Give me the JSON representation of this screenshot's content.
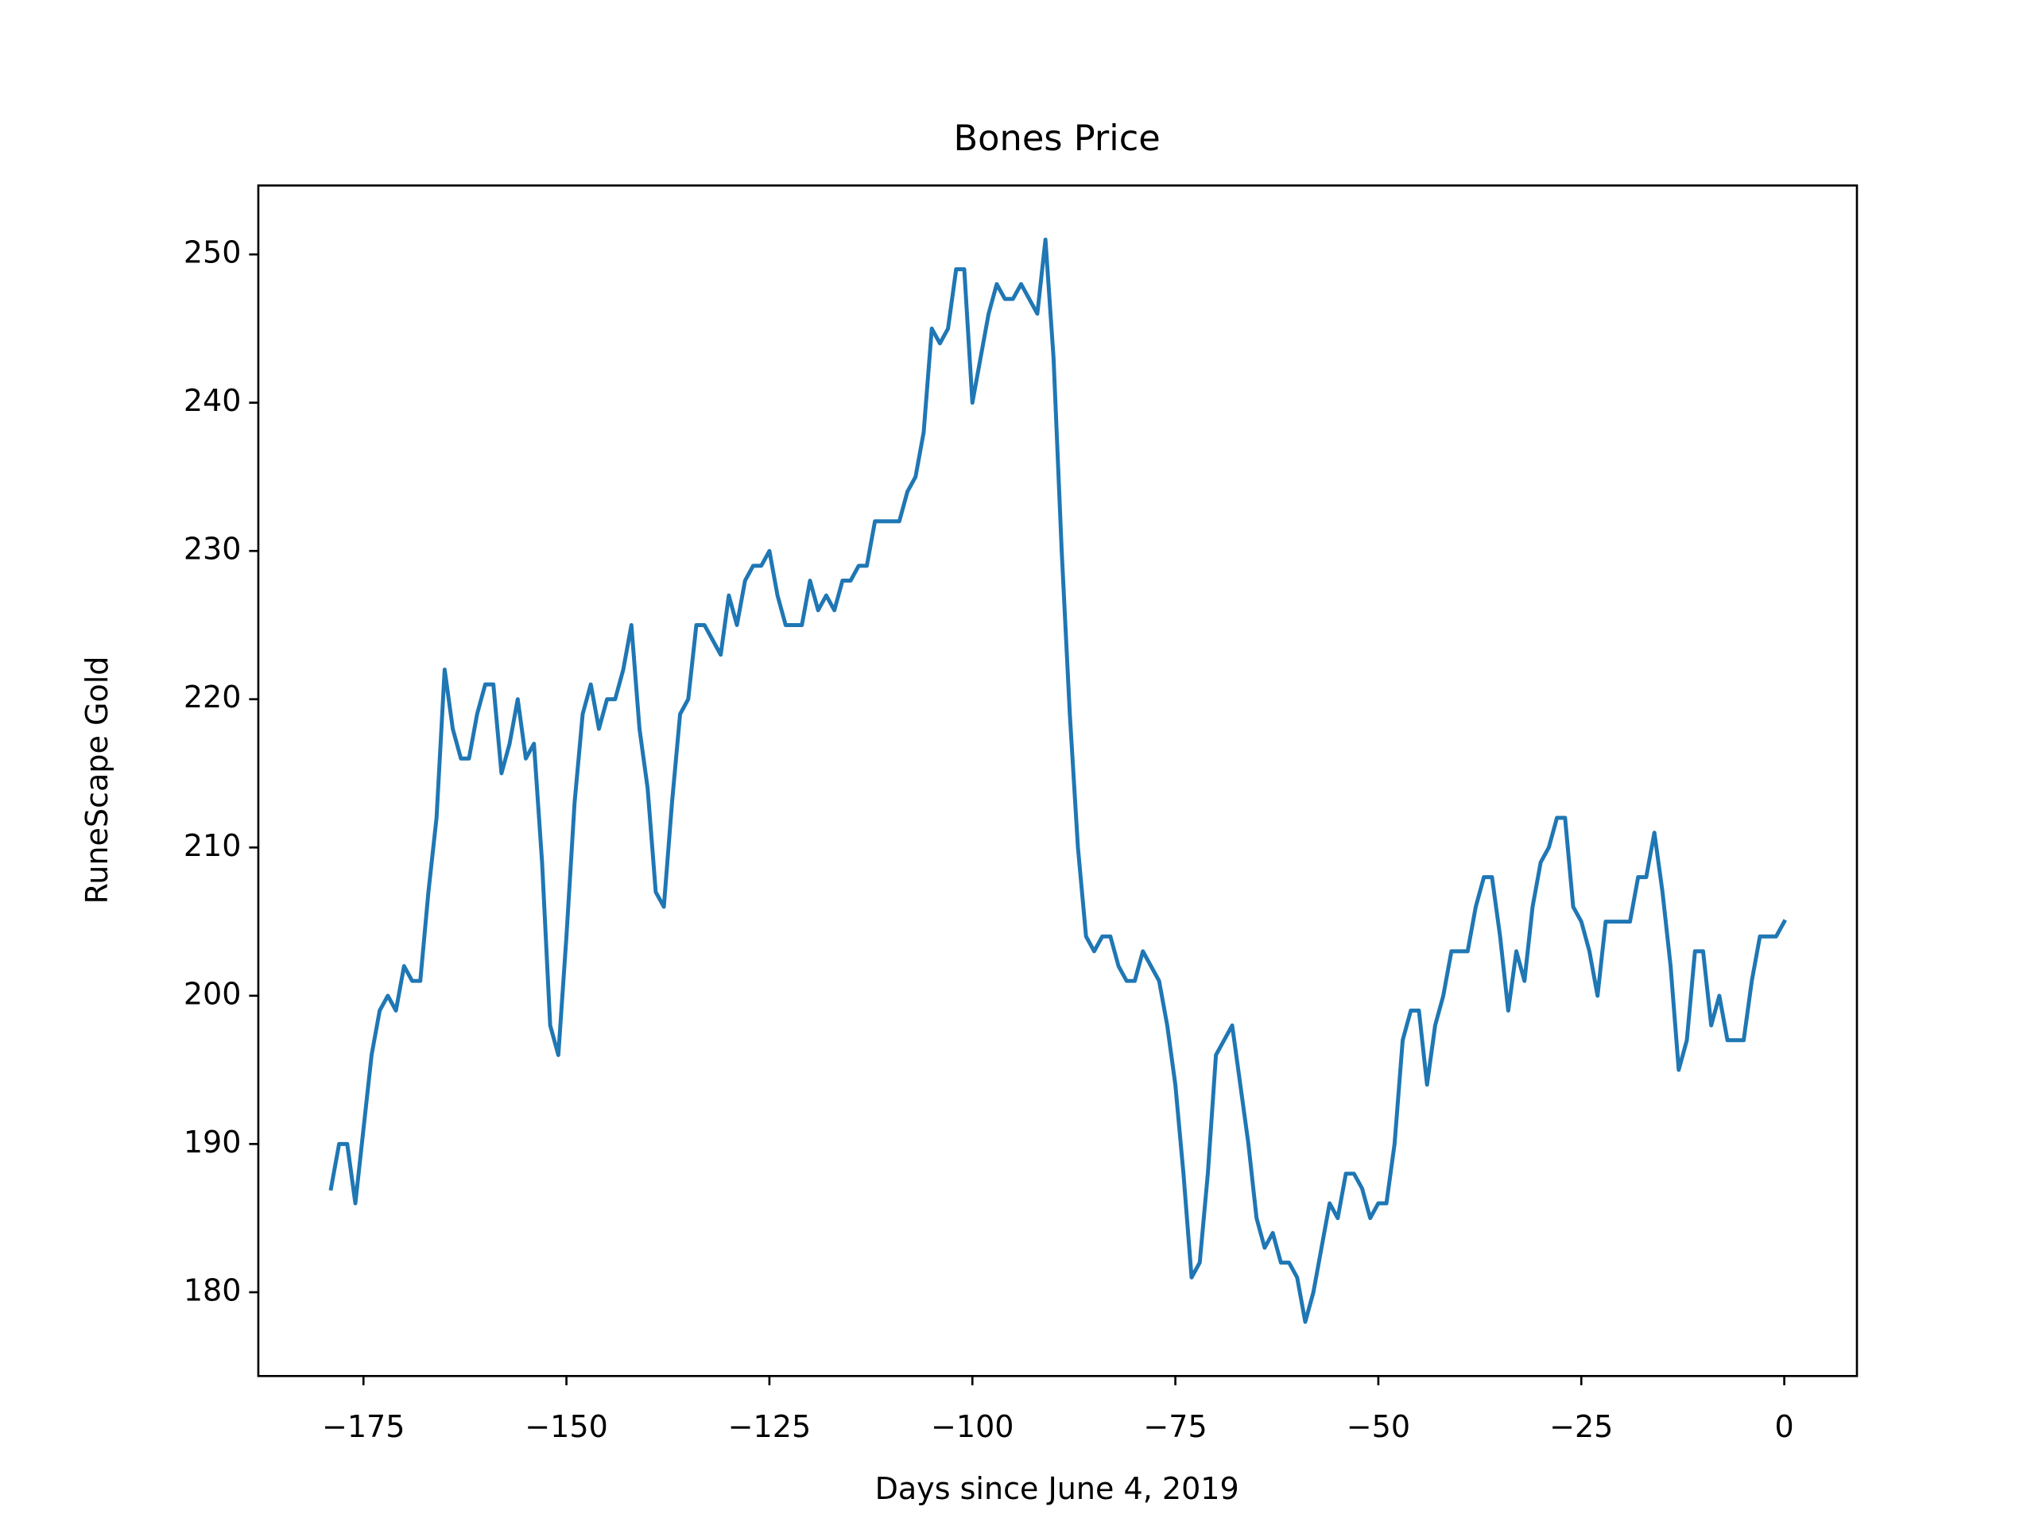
{
  "chart_data": {
    "type": "line",
    "title": "Bones Price",
    "x_label": "Days since June 4, 2019",
    "y_label": "RuneScape Gold",
    "x": [
      -179,
      -178,
      -177,
      -176,
      -175,
      -174,
      -173,
      -172,
      -171,
      -170,
      -169,
      -168,
      -167,
      -166,
      -165,
      -164,
      -163,
      -162,
      -161,
      -160,
      -159,
      -158,
      -157,
      -156,
      -155,
      -154,
      -153,
      -152,
      -151,
      -150,
      -149,
      -148,
      -147,
      -146,
      -145,
      -144,
      -143,
      -142,
      -141,
      -140,
      -139,
      -138,
      -137,
      -136,
      -135,
      -134,
      -133,
      -132,
      -131,
      -130,
      -129,
      -128,
      -127,
      -126,
      -125,
      -124,
      -123,
      -122,
      -121,
      -120,
      -119,
      -118,
      -117,
      -116,
      -115,
      -114,
      -113,
      -112,
      -111,
      -110,
      -109,
      -108,
      -107,
      -106,
      -105,
      -104,
      -103,
      -102,
      -101,
      -100,
      -99,
      -98,
      -97,
      -96,
      -95,
      -94,
      -93,
      -92,
      -91,
      -90,
      -89,
      -88,
      -87,
      -86,
      -85,
      -84,
      -83,
      -82,
      -81,
      -80,
      -79,
      -78,
      -77,
      -76,
      -75,
      -74,
      -73,
      -72,
      -71,
      -70,
      -69,
      -68,
      -67,
      -66,
      -65,
      -64,
      -63,
      -62,
      -61,
      -60,
      -59,
      -58,
      -57,
      -56,
      -55,
      -54,
      -53,
      -52,
      -51,
      -50,
      -49,
      -48,
      -47,
      -46,
      -45,
      -44,
      -43,
      -42,
      -41,
      -40,
      -39,
      -38,
      -37,
      -36,
      -35,
      -34,
      -33,
      -32,
      -31,
      -30,
      -29,
      -28,
      -27,
      -26,
      -25,
      -24,
      -23,
      -22,
      -21,
      -20,
      -19,
      -18,
      -17,
      -16,
      -15,
      -14,
      -13,
      -12,
      -11,
      -10,
      -9,
      -8,
      -7,
      -6,
      -5,
      -4,
      -3,
      -2,
      -1,
      0
    ],
    "series": [
      {
        "color": "#1f77b4",
        "values": [
          187,
          190,
          190,
          186,
          191,
          196,
          199,
          200,
          199,
          202,
          201,
          201,
          207,
          212,
          222,
          218,
          216,
          216,
          219,
          221,
          221,
          215,
          217,
          220,
          216,
          217,
          209,
          198,
          196,
          204,
          213,
          219,
          221,
          218,
          220,
          220,
          222,
          225,
          218,
          214,
          207,
          206,
          213,
          219,
          220,
          225,
          225,
          224,
          223,
          227,
          225,
          228,
          229,
          229,
          230,
          227,
          225,
          225,
          225,
          228,
          226,
          227,
          226,
          228,
          228,
          229,
          229,
          232,
          232,
          232,
          232,
          234,
          235,
          238,
          245,
          244,
          245,
          249,
          249,
          240,
          243,
          246,
          248,
          247,
          247,
          248,
          247,
          246,
          251,
          243,
          230,
          219,
          210,
          204,
          203,
          204,
          204,
          202,
          201,
          201,
          203,
          202,
          201,
          198,
          194,
          188,
          181,
          182,
          188,
          196,
          197,
          198,
          194,
          190,
          185,
          183,
          184,
          182,
          182,
          181,
          178,
          180,
          183,
          186,
          185,
          188,
          188,
          187,
          185,
          186,
          186,
          190,
          197,
          199,
          199,
          194,
          198,
          200,
          203,
          203,
          203,
          206,
          208,
          208,
          204,
          199,
          203,
          201,
          206,
          209,
          210,
          212,
          212,
          206,
          205,
          203,
          200,
          205,
          205,
          205,
          205,
          208,
          208,
          211,
          207,
          202,
          195,
          197,
          203,
          203,
          198,
          200,
          197,
          197,
          197,
          201,
          204,
          204,
          204,
          205
        ]
      }
    ],
    "xlim": [
      -187.95,
      8.95
    ],
    "ylim": [
      174.35,
      254.65
    ],
    "xticks": [
      {
        "value": -175,
        "label": "−175"
      },
      {
        "value": -150,
        "label": "−150"
      },
      {
        "value": -125,
        "label": "−125"
      },
      {
        "value": -100,
        "label": "−100"
      },
      {
        "value": -75,
        "label": "−75"
      },
      {
        "value": -50,
        "label": "−50"
      },
      {
        "value": -25,
        "label": "−25"
      },
      0
    ],
    "yticks": [
      180,
      190,
      200,
      210,
      220,
      230,
      240,
      250
    ],
    "grid": false
  }
}
